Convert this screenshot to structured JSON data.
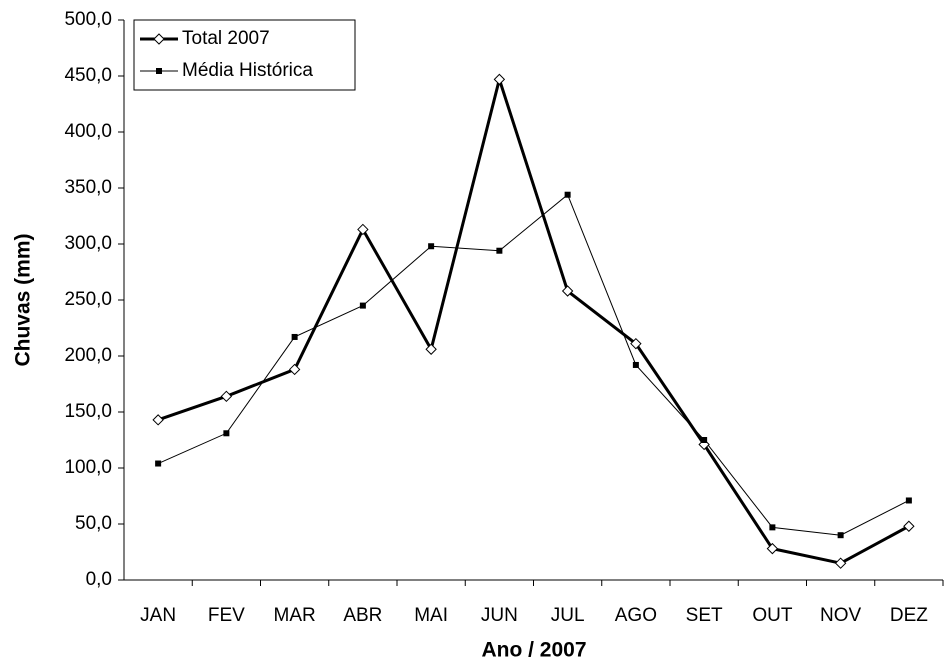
{
  "chart_data": {
    "type": "line",
    "x_label": "Ano / 2007",
    "y_label": "Chuvas (mm)",
    "categories": [
      "JAN",
      "FEV",
      "MAR",
      "ABR",
      "MAI",
      "JUN",
      "JUL",
      "AGO",
      "SET",
      "OUT",
      "NOV",
      "DEZ"
    ],
    "series": [
      {
        "name": "Total 2007",
        "color": "#000000",
        "marker": "diamond",
        "line_width": 3,
        "values": [
          143,
          164,
          188,
          313,
          206,
          447,
          258,
          211,
          121,
          28,
          15,
          48
        ]
      },
      {
        "name": "Média Histórica",
        "color": "#000000",
        "marker": "square",
        "line_width": 1,
        "values": [
          104,
          131,
          217,
          245,
          298,
          294,
          344,
          192,
          125,
          47,
          40,
          71
        ]
      }
    ],
    "ylim": [
      0,
      500
    ],
    "yticks": [
      {
        "value": 0,
        "label": "0,0"
      },
      {
        "value": 50,
        "label": "50,0"
      },
      {
        "value": 100,
        "label": "100,0"
      },
      {
        "value": 150,
        "label": "150,0"
      },
      {
        "value": 200,
        "label": "200,0"
      },
      {
        "value": 250,
        "label": "250,0"
      },
      {
        "value": 300,
        "label": "300,0"
      },
      {
        "value": 350,
        "label": "350,0"
      },
      {
        "value": 400,
        "label": "400,0"
      },
      {
        "value": 450,
        "label": "450,0"
      },
      {
        "value": 500,
        "label": "500,0"
      }
    ],
    "grid": false,
    "legend_position": "upper left"
  }
}
